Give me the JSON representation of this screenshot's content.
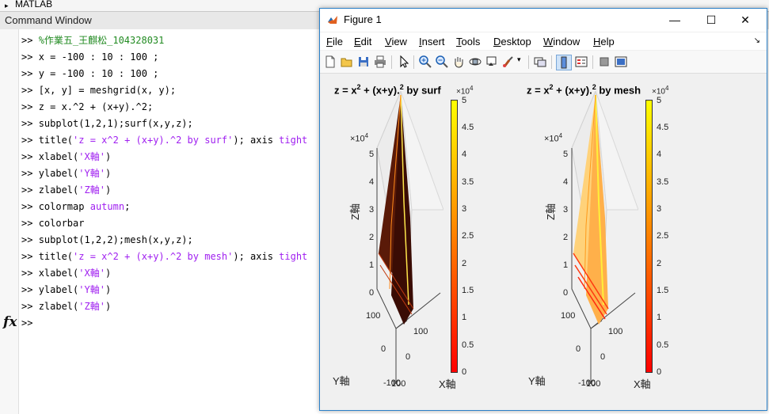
{
  "matlab": {
    "title": "MATLAB"
  },
  "command_window": {
    "title": "Command Window",
    "prompt": ">>",
    "lines": [
      {
        "a": "%作業五_王麒松_104328031",
        "b": "",
        "c": ""
      },
      {
        "a": "x = -100 : 10 : 100 ;",
        "b": "",
        "c": ""
      },
      {
        "a": "y = -100 : 10 : 100 ;",
        "b": "",
        "c": ""
      },
      {
        "a": "[x, y] = meshgrid(x, y);",
        "b": "",
        "c": ""
      },
      {
        "a": "z = x.^2 + (x+y).^2;",
        "b": "",
        "c": ""
      },
      {
        "a": "subplot(1,2,1);surf(x,y,z);",
        "b": "",
        "c": ""
      },
      {
        "a": "title(",
        "b": "'z = x^2 + (x+y).^2 by surf'",
        "c": "); axis tight"
      },
      {
        "a": "xlabel(",
        "b": "'X軸'",
        "c": ")"
      },
      {
        "a": "ylabel(",
        "b": "'Y軸'",
        "c": ")"
      },
      {
        "a": "zlabel(",
        "b": "'Z軸'",
        "c": ")"
      },
      {
        "a": "colormap ",
        "b": "autumn",
        "c": ";"
      },
      {
        "a": "colorbar",
        "b": "",
        "c": ""
      },
      {
        "a": "subplot(1,2,2);mesh(x,y,z);",
        "b": "",
        "c": ""
      },
      {
        "a": "title(",
        "b": "'z = x^2 + (x+y).^2 by mesh'",
        "c": "); axis tight"
      },
      {
        "a": "xlabel(",
        "b": "'X軸'",
        "c": ")"
      },
      {
        "a": "ylabel(",
        "b": "'Y軸'",
        "c": ")"
      },
      {
        "a": "zlabel(",
        "b": "'Z軸'",
        "c": ")"
      }
    ],
    "fx_symbol": "fx"
  },
  "figure": {
    "title": "Figure 1",
    "minimize": "—",
    "maximize": "☐",
    "close": "✕",
    "menu": [
      {
        "key": "F",
        "rest": "ile"
      },
      {
        "key": "E",
        "rest": "dit"
      },
      {
        "key": "V",
        "rest": "iew"
      },
      {
        "key": "I",
        "rest": "nsert"
      },
      {
        "key": "T",
        "rest": "ools"
      },
      {
        "key": "D",
        "rest": "esktop"
      },
      {
        "key": "W",
        "rest": "indow"
      },
      {
        "key": "H",
        "rest": "elp"
      }
    ],
    "menu_arrow": "↘",
    "plots": [
      {
        "title_pre": "z = x",
        "title_mid": " + (x+y).",
        "title_post": " by surf",
        "sup": "2",
        "exp_label": "×10",
        "exp_sup": "4",
        "z_ticks": [
          "5",
          "4",
          "3",
          "2",
          "1",
          "0"
        ],
        "y_ticks": [
          "100",
          "0",
          "-100"
        ],
        "x_ticks": [
          "100",
          "0",
          "100"
        ],
        "xlabel": "X軸",
        "ylabel": "Y軸",
        "zlabel": "Z軸",
        "cbar_exp": "×10",
        "cbar_ticks": [
          "5",
          "4.5",
          "4",
          "3.5",
          "3",
          "2.5",
          "2",
          "1.5",
          "1",
          "0.5",
          "0"
        ]
      },
      {
        "title_pre": "z = x",
        "title_mid": " + (x+y).",
        "title_post": " by mesh",
        "sup": "2",
        "exp_label": "×10",
        "exp_sup": "4",
        "z_ticks": [
          "5",
          "4",
          "3",
          "2",
          "1",
          "0"
        ],
        "y_ticks": [
          "100",
          "0",
          "-100"
        ],
        "x_ticks": [
          "100",
          "0",
          "100"
        ],
        "xlabel": "X軸",
        "ylabel": "Y軸",
        "zlabel": "Z軸",
        "cbar_exp": "×10",
        "cbar_ticks": [
          "5",
          "4.5",
          "4",
          "3.5",
          "3",
          "2.5",
          "2",
          "1.5",
          "1",
          "0.5",
          "0"
        ]
      }
    ],
    "colors": {
      "colormap_top": "#ffff00",
      "colormap_mid": "#ff8000",
      "colormap_bottom": "#ff0000",
      "window_border": "#2b80c8"
    }
  }
}
